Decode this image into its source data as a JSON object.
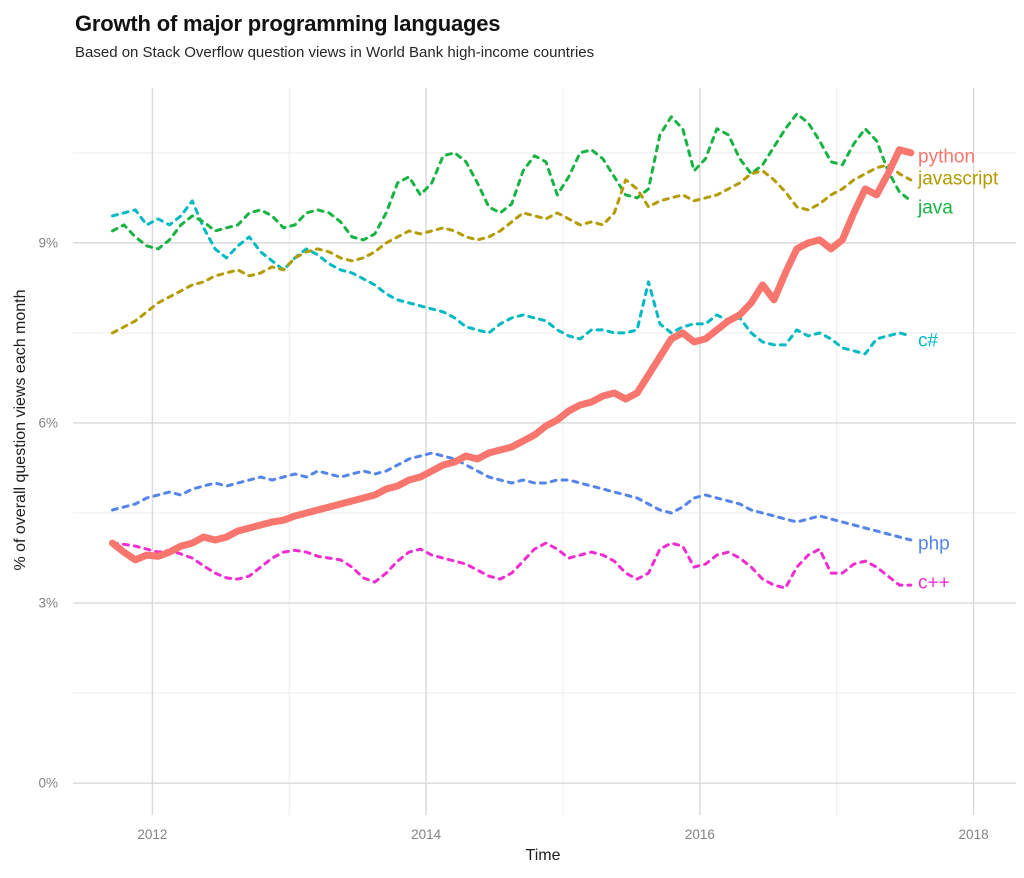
{
  "header": {
    "title": "Growth of major programming languages",
    "subtitle": "Based on Stack Overflow question views in World Bank high-income countries"
  },
  "chart_data": {
    "type": "line",
    "title": "Growth of major programming languages",
    "subtitle": "Based on Stack Overflow question views in World Bank high-income countries",
    "xlabel": "Time",
    "ylabel": "% of overall question views each month",
    "grid": true,
    "legend_position": "direct-labels-right",
    "x_domain": [
      2011.42,
      2018.31
    ],
    "y_domain": [
      -0.53,
      11.58
    ],
    "x_ticks": [
      {
        "value": 2012,
        "label": "2012"
      },
      {
        "value": 2014,
        "label": "2014"
      },
      {
        "value": 2016,
        "label": "2016"
      },
      {
        "value": 2018,
        "label": "2018"
      }
    ],
    "x_minor_ticks": [
      2013,
      2015,
      2017
    ],
    "y_ticks": [
      {
        "value": 0,
        "label": "0%"
      },
      {
        "value": 3,
        "label": "3%"
      },
      {
        "value": 6,
        "label": "6%"
      },
      {
        "value": 9,
        "label": "9%"
      }
    ],
    "y_minor_ticks": [
      1.5,
      4.5,
      7.5,
      10.5
    ],
    "grid_colors": {
      "major": "#D9D9D9",
      "minor": "#ECECEC"
    },
    "start_month": "2011-09",
    "end_month": "2017-07",
    "series": [
      {
        "name": "python",
        "label": "python",
        "color": "#F8766D",
        "style": "solid",
        "width": 7,
        "label_y": 10.45,
        "values": [
          4.0,
          3.85,
          3.72,
          3.8,
          3.78,
          3.85,
          3.95,
          4.0,
          4.1,
          4.05,
          4.1,
          4.2,
          4.25,
          4.3,
          4.35,
          4.38,
          4.45,
          4.5,
          4.55,
          4.6,
          4.65,
          4.7,
          4.75,
          4.8,
          4.9,
          4.95,
          5.05,
          5.1,
          5.2,
          5.3,
          5.35,
          5.45,
          5.4,
          5.5,
          5.55,
          5.6,
          5.7,
          5.8,
          5.95,
          6.05,
          6.2,
          6.3,
          6.35,
          6.45,
          6.5,
          6.4,
          6.5,
          6.8,
          7.1,
          7.4,
          7.5,
          7.35,
          7.4,
          7.55,
          7.7,
          7.8,
          8.0,
          8.3,
          8.05,
          8.5,
          8.9,
          9.0,
          9.05,
          8.9,
          9.05,
          9.5,
          9.9,
          9.8,
          10.15,
          10.55,
          10.5
        ]
      },
      {
        "name": "javascript",
        "label": "javascript",
        "color": "#B39B00",
        "style": "dashed",
        "width": 3,
        "label_y": 10.08,
        "values": [
          7.5,
          7.6,
          7.7,
          7.85,
          8.0,
          8.1,
          8.2,
          8.3,
          8.35,
          8.45,
          8.5,
          8.55,
          8.45,
          8.5,
          8.6,
          8.55,
          8.75,
          8.85,
          8.9,
          8.85,
          8.75,
          8.7,
          8.75,
          8.85,
          9.0,
          9.1,
          9.2,
          9.15,
          9.2,
          9.25,
          9.2,
          9.1,
          9.05,
          9.1,
          9.2,
          9.35,
          9.5,
          9.45,
          9.4,
          9.5,
          9.4,
          9.3,
          9.35,
          9.3,
          9.5,
          10.05,
          9.9,
          9.6,
          9.7,
          9.75,
          9.8,
          9.7,
          9.75,
          9.8,
          9.9,
          10.0,
          10.15,
          10.2,
          10.05,
          9.85,
          9.6,
          9.55,
          9.65,
          9.8,
          9.9,
          10.05,
          10.15,
          10.25,
          10.3,
          10.15,
          10.05
        ]
      },
      {
        "name": "java",
        "label": "java",
        "color": "#17B343",
        "style": "dashed",
        "width": 3,
        "label_y": 9.6,
        "values": [
          9.2,
          9.3,
          9.1,
          8.95,
          8.9,
          9.05,
          9.3,
          9.45,
          9.35,
          9.2,
          9.25,
          9.3,
          9.5,
          9.55,
          9.45,
          9.25,
          9.3,
          9.5,
          9.55,
          9.5,
          9.35,
          9.1,
          9.05,
          9.15,
          9.5,
          10.0,
          10.1,
          9.8,
          10.0,
          10.45,
          10.5,
          10.35,
          10.0,
          9.6,
          9.5,
          9.65,
          10.2,
          10.45,
          10.35,
          9.8,
          10.1,
          10.5,
          10.55,
          10.4,
          10.1,
          9.8,
          9.75,
          9.9,
          10.8,
          11.1,
          10.9,
          10.2,
          10.4,
          10.9,
          10.8,
          10.4,
          10.15,
          10.3,
          10.6,
          10.9,
          11.15,
          11.0,
          10.7,
          10.35,
          10.3,
          10.65,
          10.9,
          10.7,
          10.2,
          9.85,
          9.7
        ]
      },
      {
        "name": "c#",
        "label": "c#",
        "color": "#00B9C3",
        "style": "dashed",
        "width": 3,
        "label_y": 7.38,
        "values": [
          9.45,
          9.5,
          9.55,
          9.3,
          9.4,
          9.3,
          9.45,
          9.7,
          9.25,
          8.9,
          8.75,
          8.95,
          9.1,
          8.85,
          8.7,
          8.55,
          8.75,
          8.9,
          8.8,
          8.65,
          8.55,
          8.5,
          8.4,
          8.3,
          8.15,
          8.05,
          8.0,
          7.95,
          7.9,
          7.85,
          7.75,
          7.6,
          7.55,
          7.5,
          7.65,
          7.75,
          7.8,
          7.75,
          7.7,
          7.55,
          7.45,
          7.4,
          7.55,
          7.55,
          7.5,
          7.5,
          7.55,
          8.35,
          7.65,
          7.5,
          7.6,
          7.65,
          7.65,
          7.8,
          7.7,
          7.75,
          7.5,
          7.35,
          7.3,
          7.3,
          7.55,
          7.45,
          7.5,
          7.4,
          7.25,
          7.2,
          7.15,
          7.4,
          7.45,
          7.5,
          7.45
        ]
      },
      {
        "name": "php",
        "label": "php",
        "color": "#5585E8",
        "style": "dashed",
        "width": 3,
        "label_y": 4.0,
        "values": [
          4.55,
          4.6,
          4.65,
          4.75,
          4.8,
          4.85,
          4.8,
          4.9,
          4.95,
          5.0,
          4.95,
          5.0,
          5.05,
          5.1,
          5.05,
          5.1,
          5.15,
          5.1,
          5.2,
          5.15,
          5.1,
          5.15,
          5.2,
          5.15,
          5.2,
          5.3,
          5.4,
          5.45,
          5.5,
          5.45,
          5.4,
          5.3,
          5.2,
          5.1,
          5.05,
          5.0,
          5.05,
          5.0,
          5.0,
          5.05,
          5.05,
          5.0,
          4.95,
          4.9,
          4.85,
          4.8,
          4.75,
          4.65,
          4.55,
          4.5,
          4.6,
          4.75,
          4.8,
          4.75,
          4.7,
          4.65,
          4.55,
          4.5,
          4.45,
          4.4,
          4.35,
          4.4,
          4.45,
          4.4,
          4.35,
          4.3,
          4.25,
          4.2,
          4.15,
          4.1,
          4.05
        ]
      },
      {
        "name": "c++",
        "label": "c++",
        "color": "#F02DD0",
        "style": "dashed",
        "width": 3,
        "label_y": 3.35,
        "values": [
          4.0,
          3.98,
          3.95,
          3.9,
          3.85,
          3.88,
          3.82,
          3.75,
          3.62,
          3.5,
          3.42,
          3.4,
          3.45,
          3.6,
          3.75,
          3.85,
          3.88,
          3.85,
          3.78,
          3.75,
          3.72,
          3.6,
          3.42,
          3.35,
          3.5,
          3.7,
          3.85,
          3.9,
          3.8,
          3.75,
          3.7,
          3.65,
          3.55,
          3.45,
          3.4,
          3.5,
          3.7,
          3.9,
          4.0,
          3.9,
          3.75,
          3.8,
          3.85,
          3.8,
          3.7,
          3.5,
          3.4,
          3.5,
          3.9,
          4.0,
          3.95,
          3.6,
          3.65,
          3.8,
          3.85,
          3.75,
          3.6,
          3.4,
          3.3,
          3.25,
          3.6,
          3.8,
          3.9,
          3.5,
          3.5,
          3.65,
          3.7,
          3.6,
          3.45,
          3.3,
          3.3
        ]
      }
    ]
  }
}
